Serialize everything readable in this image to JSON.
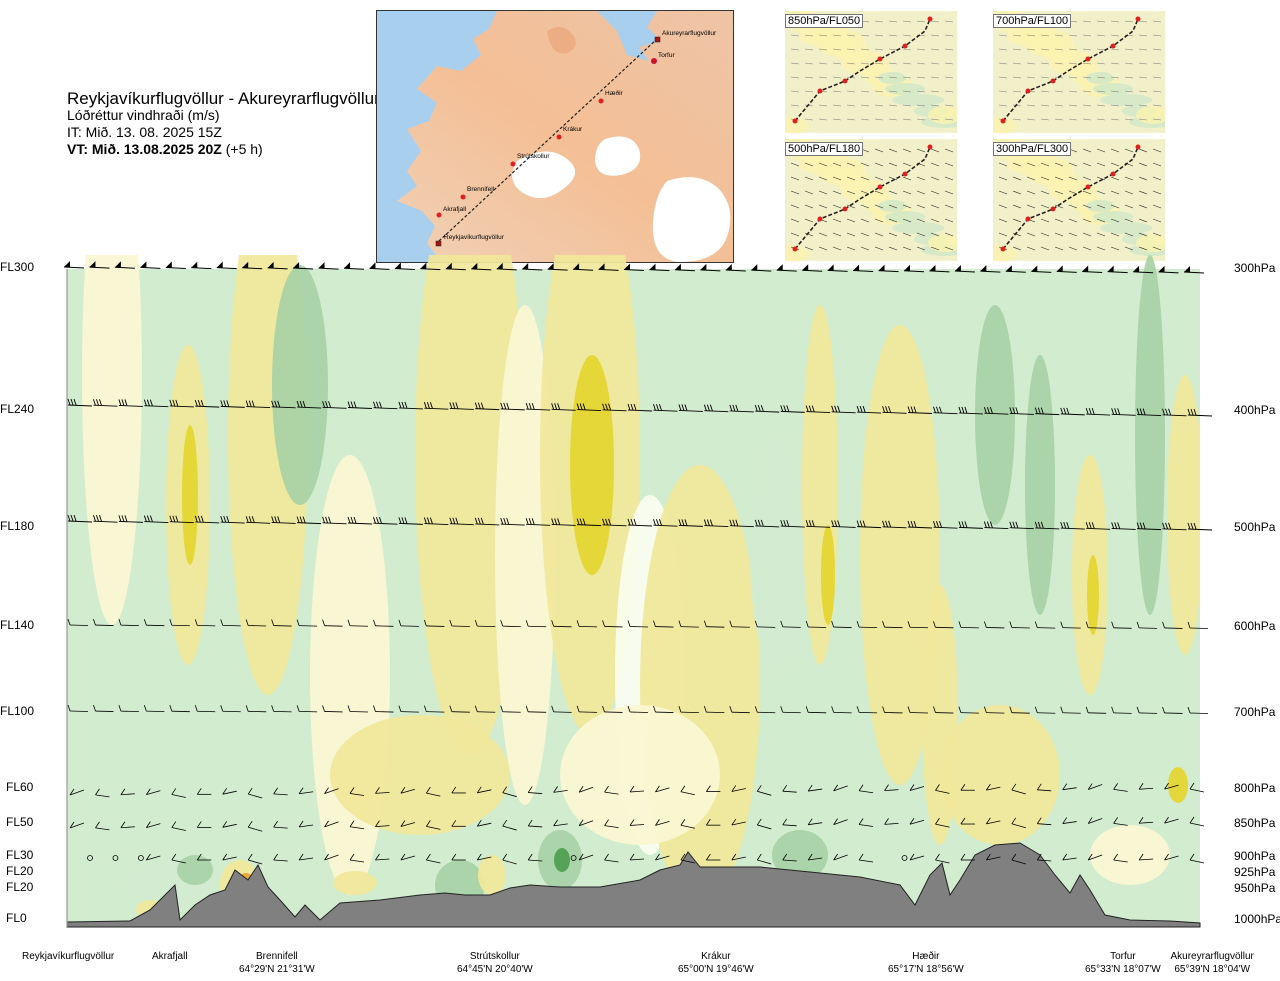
{
  "header": {
    "title": "Reykjavíkurflugvöllur - Akureyrarflugvöllur",
    "subtitle": "Lóðréttur vindhraði (m/s)",
    "it": "IT: Mið. 13. 08. 2025 15Z",
    "vt": "VT: Mið. 13.08.2025 20Z",
    "vt_offset": "(+5 h)"
  },
  "map": {
    "stations": [
      "Akureyrarflugvöllur",
      "Torfur",
      "Hæðir",
      "Krákur",
      "Strútskollur",
      "Brennifell",
      "Akrafjall",
      "Reykjavíkurflugvöllur"
    ]
  },
  "minimaps": [
    {
      "label": "850hPa/FL050"
    },
    {
      "label": "700hPa/FL100"
    },
    {
      "label": "500hPa/FL180"
    },
    {
      "label": "300hPa/FL300"
    }
  ],
  "chart_data": {
    "type": "heatmap",
    "title": "Reykjavíkurflugvöllur - Akureyrarflugvöllur",
    "variable": "Lóðréttur vindhraði (m/s)",
    "left_axis": [
      "FL300",
      "FL240",
      "FL180",
      "FL140",
      "FL100",
      "FL60",
      "FL50",
      "FL30",
      "FL20",
      "FL20",
      "FL0"
    ],
    "right_axis": [
      "300hPa",
      "400hPa",
      "500hPa",
      "600hPa",
      "700hPa",
      "800hPa",
      "850hPa",
      "900hPa",
      "925hPa",
      "950hPa",
      "1000hPa"
    ],
    "stations": [
      {
        "name": "Reykjavíkurflugvöllur",
        "coord": ""
      },
      {
        "name": "Akrafjall",
        "coord": ""
      },
      {
        "name": "Brennifell",
        "coord": "64°29'N 21°31'W"
      },
      {
        "name": "Strútskollur",
        "coord": "64°45'N 20°40'W"
      },
      {
        "name": "Krákur",
        "coord": "65°00'N 19°46'W"
      },
      {
        "name": "Hæðir",
        "coord": "65°17'N 18°56'W"
      },
      {
        "name": "Torfur",
        "coord": "65°33'N 18°07'W"
      },
      {
        "name": "Akureyrarflugvöllur",
        "coord": "65°39'N 18°04'W"
      }
    ],
    "colors": {
      "strong_up": "#e5d52f",
      "up": "#f1e79a",
      "weak_up": "#fbf6d2",
      "neutral": "#fbfdf0",
      "weak_down": "#d2ecd0",
      "down": "#a8d1a6",
      "strong_down": "#4e9e50",
      "terrain": "#808080",
      "wind_barb": "#000000"
    }
  }
}
